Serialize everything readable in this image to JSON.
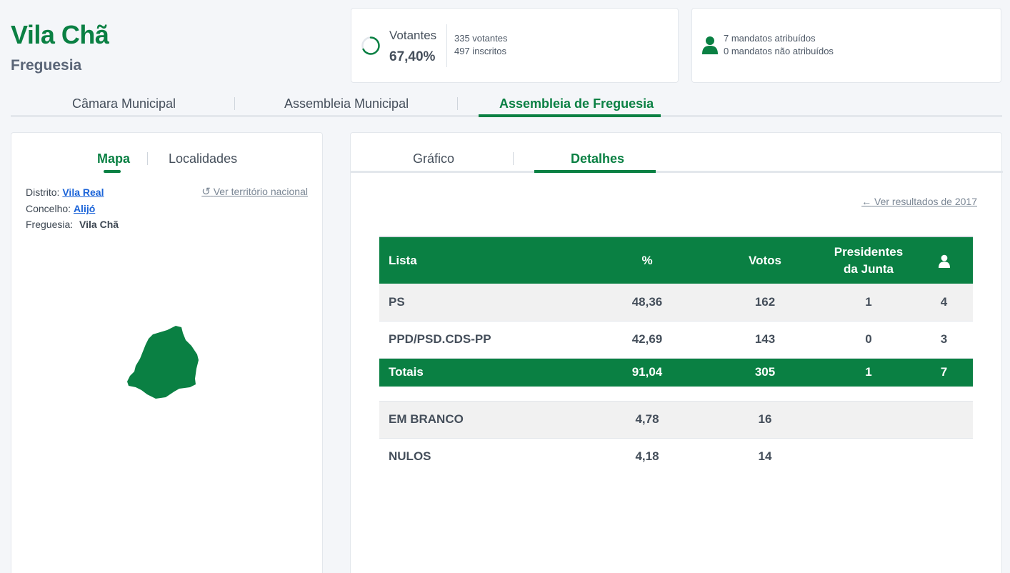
{
  "header": {
    "title": "Vila Chã",
    "subtitle": "Freguesia"
  },
  "voters": {
    "label": "Votantes",
    "percentage": "67,40%",
    "participation": 0.674,
    "votantes": "335 votantes",
    "inscritos": "497 inscritos"
  },
  "mandates": {
    "assigned": "7 mandatos atribuídos",
    "unassigned": "0 mandatos não atribuídos"
  },
  "main_tabs": [
    {
      "label": "Câmara Municipal"
    },
    {
      "label": "Assembleia Municipal"
    },
    {
      "label": "Assembleia de Freguesia",
      "active": true
    }
  ],
  "left_panel": {
    "tabs": [
      {
        "label": "Mapa",
        "active": true
      },
      {
        "label": "Localidades"
      }
    ],
    "national_link": "Ver território nacional",
    "location": {
      "distrito_label": "Distrito:",
      "distrito": "Vila Real",
      "concelho_label": "Concelho:",
      "concelho": "Alijó",
      "freguesia_label": "Freguesia:",
      "freguesia": "Vila Chã"
    }
  },
  "right_panel": {
    "tabs": [
      {
        "label": "Gráfico"
      },
      {
        "label": "Detalhes",
        "active": true
      }
    ],
    "prev_results_link": "Ver resultados de 2017",
    "table": {
      "headers": {
        "lista": "Lista",
        "pct": "%",
        "votos": "Votos",
        "presidentes_1": "Presidentes",
        "presidentes_2": "da Junta",
        "mandates_icon": "user-icon"
      },
      "rows": [
        {
          "lista": "PS",
          "pct": "48,36",
          "votos": "162",
          "presidentes": "1",
          "mandatos": "4"
        },
        {
          "lista": "PPD/PSD.CDS-PP",
          "pct": "42,69",
          "votos": "143",
          "presidentes": "0",
          "mandatos": "3"
        }
      ],
      "totals": {
        "lista": "Totais",
        "pct": "91,04",
        "votos": "305",
        "presidentes": "1",
        "mandatos": "7"
      },
      "extra": [
        {
          "lista": "EM BRANCO",
          "pct": "4,78",
          "votos": "16"
        },
        {
          "lista": "NULOS",
          "pct": "4,18",
          "votos": "14"
        }
      ]
    }
  },
  "colors": {
    "accent": "#0a8043",
    "link": "#1a63d8",
    "text": "#454f5b",
    "background": "#f4f6f9"
  }
}
